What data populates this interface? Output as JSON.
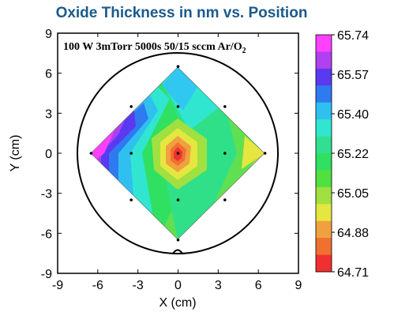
{
  "chart_data": {
    "type": "heatmap",
    "title": "Oxide Thickness in nm vs. Position",
    "xlabel": "X (cm)",
    "ylabel": "Y (cm)",
    "xlim": [
      -9,
      9
    ],
    "ylim": [
      -9,
      9
    ],
    "xticks": [
      "-9",
      "-6",
      "-3",
      "0",
      "3",
      "6",
      "9"
    ],
    "yticks": [
      "-9",
      "-6",
      "-3",
      "0",
      "3",
      "6",
      "9"
    ],
    "annotation_main": "100 W 3mTorr 5000s 50/15 sccm Ar/O",
    "annotation_sub": "2",
    "grid": false,
    "colorbar": {
      "labels": [
        "65.74",
        "65.57",
        "65.40",
        "65.22",
        "65.05",
        "64.88",
        "64.71"
      ],
      "colors_top_to_bottom": [
        "#ff40ff",
        "#b040f0",
        "#5a3af0",
        "#2e7af0",
        "#30c0f0",
        "#30e6d0",
        "#30e090",
        "#30e060",
        "#50e040",
        "#a0e040",
        "#e6e640",
        "#f0a040",
        "#f07030",
        "#f03030"
      ]
    },
    "sample_points": [
      {
        "x": 0,
        "y": 6.5
      },
      {
        "x": -3.5,
        "y": 3.5
      },
      {
        "x": 0,
        "y": 3.5
      },
      {
        "x": 3.5,
        "y": 3.5
      },
      {
        "x": -6.5,
        "y": 0
      },
      {
        "x": -3.5,
        "y": 0
      },
      {
        "x": 0,
        "y": 0
      },
      {
        "x": 3.5,
        "y": 0
      },
      {
        "x": 6.5,
        "y": 0
      },
      {
        "x": -3.5,
        "y": -3.5
      },
      {
        "x": 0,
        "y": -3.5
      },
      {
        "x": 3.5,
        "y": -3.5
      },
      {
        "x": 0,
        "y": -6.5
      }
    ],
    "wafer_circle_radius": 7.5
  }
}
